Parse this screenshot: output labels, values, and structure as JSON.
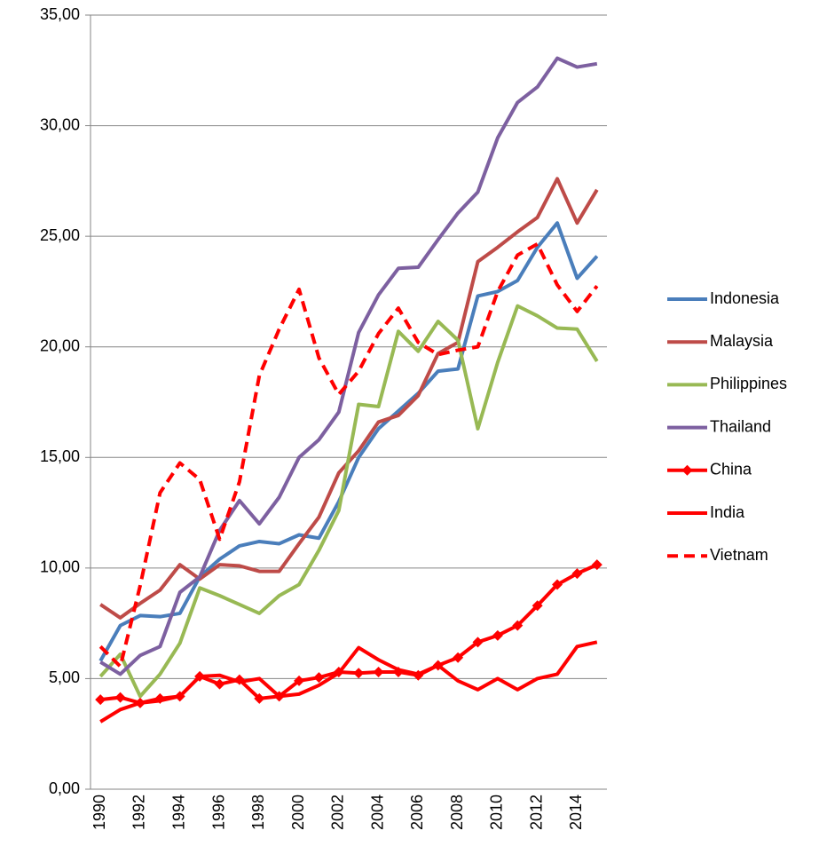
{
  "chart_data": {
    "type": "line",
    "categories": [
      "1990",
      null,
      "1992",
      null,
      "1994",
      null,
      "1996",
      null,
      "1998",
      null,
      "2000",
      null,
      "2002",
      null,
      "2004",
      null,
      "2006",
      null,
      "2008",
      null,
      "2010",
      null,
      "2012",
      null,
      "2014",
      null
    ],
    "ylim": [
      0,
      35
    ],
    "yticks": [
      {
        "value": 0,
        "label": "0,00"
      },
      {
        "value": 5,
        "label": "5,00"
      },
      {
        "value": 10,
        "label": "10,00"
      },
      {
        "value": 15,
        "label": "15,00"
      },
      {
        "value": 20,
        "label": "20,00"
      },
      {
        "value": 25,
        "label": "25,00"
      },
      {
        "value": 30,
        "label": "30,00"
      },
      {
        "value": 35,
        "label": "35,00"
      }
    ],
    "grid": true,
    "legend": "right",
    "series": [
      {
        "name": "Indonesia",
        "color": "#4a7ebb",
        "values": [
          5.8,
          7.4,
          7.85,
          7.8,
          7.95,
          9.6,
          10.4,
          11.0,
          11.2,
          11.1,
          11.5,
          11.35,
          13.0,
          15.0,
          16.3,
          17.1,
          17.9,
          18.9,
          19.0,
          22.3,
          22.5,
          23.0,
          24.5,
          25.6,
          23.1,
          24.1
        ]
      },
      {
        "name": "Malaysia",
        "color": "#be4b48",
        "values": [
          8.35,
          7.75,
          8.4,
          9.0,
          10.15,
          9.5,
          10.15,
          10.1,
          9.85,
          9.85,
          11.1,
          12.3,
          14.3,
          15.3,
          16.6,
          16.9,
          17.8,
          19.7,
          20.2,
          23.85,
          24.5,
          25.2,
          25.85,
          27.6,
          25.6,
          27.1
        ]
      },
      {
        "name": "Philippines",
        "color": "#98b954",
        "values": [
          5.1,
          6.1,
          4.2,
          5.2,
          6.6,
          9.1,
          8.75,
          8.35,
          7.95,
          8.75,
          9.25,
          10.8,
          12.6,
          17.4,
          17.3,
          20.7,
          19.8,
          21.15,
          20.3,
          16.3,
          19.3,
          21.85,
          21.4,
          20.85,
          20.8,
          19.35
        ]
      },
      {
        "name": "Thailand",
        "color": "#7d60a0",
        "values": [
          5.75,
          5.2,
          6.05,
          6.45,
          8.9,
          9.6,
          11.7,
          13.05,
          12.0,
          13.2,
          15.0,
          15.8,
          17.05,
          20.65,
          22.35,
          23.55,
          23.6,
          24.85,
          26.05,
          27.0,
          29.45,
          31.05,
          31.75,
          33.05,
          32.65,
          32.8
        ]
      },
      {
        "name": "China",
        "color": "#ff0000",
        "marker": "diamond",
        "values": [
          4.05,
          4.15,
          3.9,
          4.1,
          4.2,
          5.1,
          4.75,
          4.95,
          4.1,
          4.2,
          4.9,
          5.05,
          5.3,
          5.25,
          5.3,
          5.3,
          5.15,
          5.6,
          5.95,
          6.65,
          6.95,
          7.4,
          8.3,
          9.25,
          9.75,
          10.15
        ]
      },
      {
        "name": "India",
        "color": "#ff0000",
        "values": [
          3.05,
          3.6,
          3.9,
          4.0,
          4.2,
          5.1,
          5.15,
          4.85,
          5.0,
          4.2,
          4.3,
          4.7,
          5.25,
          6.4,
          5.85,
          5.4,
          5.2,
          5.6,
          4.9,
          4.5,
          5.0,
          4.5,
          5.0,
          5.2,
          6.45,
          6.65
        ]
      },
      {
        "name": "Vietnam",
        "color": "#ff0000",
        "dash": true,
        "values": [
          6.45,
          5.55,
          9.2,
          13.4,
          14.75,
          14.0,
          11.3,
          13.9,
          18.7,
          20.8,
          22.6,
          19.5,
          17.85,
          18.9,
          20.6,
          21.75,
          20.2,
          19.65,
          19.85,
          20.0,
          22.5,
          24.15,
          24.65,
          22.8,
          21.6,
          22.75
        ]
      }
    ]
  }
}
